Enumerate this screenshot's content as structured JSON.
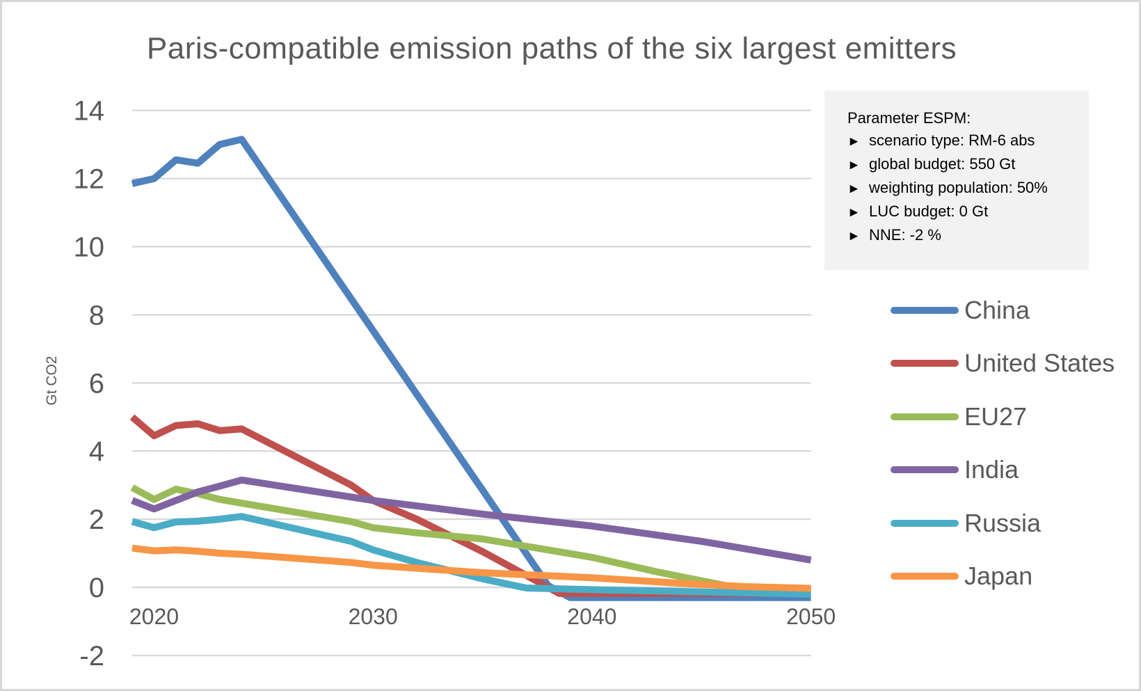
{
  "title": "Paris-compatible emission paths of the six largest emitters",
  "param_box": {
    "title": "Parameter ESPM:",
    "bullet": "►",
    "items": [
      "scenario type: RM-6 abs",
      "global budget: 550 Gt",
      "weighting population: 50%",
      "LUC budget: 0 Gt",
      "NNE: -2 %"
    ]
  },
  "colors": {
    "text": "#595959",
    "grid": "#d9d9d9",
    "param_box_bg": "#f2f2f2",
    "frame_border": "#d6d6d6",
    "background": "#ffffff"
  },
  "chart_data": {
    "type": "line",
    "title": "Paris-compatible emission paths of the six largest emitters",
    "xlabel": "",
    "ylabel": "Gt CO2",
    "xlim": [
      2019,
      2050
    ],
    "ylim": [
      -2,
      14
    ],
    "x_ticks": [
      2020,
      2030,
      2040,
      2050
    ],
    "y_ticks": [
      14,
      12,
      10,
      8,
      6,
      4,
      2,
      0,
      -2
    ],
    "grid": true,
    "legend_position": "right",
    "series": [
      {
        "name": "China",
        "color": "#4F81BD",
        "points": [
          [
            2019,
            11.85
          ],
          [
            2020,
            12.0
          ],
          [
            2021,
            12.55
          ],
          [
            2022,
            12.45
          ],
          [
            2023,
            13.0
          ],
          [
            2024,
            13.15
          ],
          [
            2038,
            0.05
          ],
          [
            2039,
            -0.3
          ],
          [
            2050,
            -0.3
          ]
        ]
      },
      {
        "name": "United States",
        "color": "#C0504D",
        "points": [
          [
            2019,
            5.0
          ],
          [
            2020,
            4.45
          ],
          [
            2021,
            4.75
          ],
          [
            2022,
            4.8
          ],
          [
            2023,
            4.6
          ],
          [
            2024,
            4.65
          ],
          [
            2029,
            3.0
          ],
          [
            2030,
            2.55
          ],
          [
            2032,
            2.0
          ],
          [
            2035,
            1.05
          ],
          [
            2037,
            0.35
          ],
          [
            2038.5,
            -0.18
          ],
          [
            2050,
            -0.18
          ]
        ]
      },
      {
        "name": "EU27",
        "color": "#9BBB59",
        "points": [
          [
            2019,
            2.93
          ],
          [
            2020,
            2.58
          ],
          [
            2021,
            2.88
          ],
          [
            2022,
            2.75
          ],
          [
            2023,
            2.58
          ],
          [
            2024,
            2.47
          ],
          [
            2029,
            1.93
          ],
          [
            2030,
            1.75
          ],
          [
            2032,
            1.6
          ],
          [
            2035,
            1.42
          ],
          [
            2040,
            0.88
          ],
          [
            2043,
            0.45
          ],
          [
            2046.5,
            0.0
          ],
          [
            2048,
            -0.06
          ],
          [
            2050,
            -0.07
          ]
        ]
      },
      {
        "name": "India",
        "color": "#8064A2",
        "points": [
          [
            2019,
            2.55
          ],
          [
            2020,
            2.3
          ],
          [
            2021,
            2.55
          ],
          [
            2022,
            2.8
          ],
          [
            2023,
            2.97
          ],
          [
            2024,
            3.15
          ],
          [
            2030,
            2.55
          ],
          [
            2035,
            2.15
          ],
          [
            2040,
            1.8
          ],
          [
            2045,
            1.35
          ],
          [
            2050,
            0.8
          ]
        ]
      },
      {
        "name": "Russia",
        "color": "#4BACC6",
        "points": [
          [
            2019,
            1.93
          ],
          [
            2020,
            1.75
          ],
          [
            2021,
            1.92
          ],
          [
            2022,
            1.94
          ],
          [
            2023,
            2.0
          ],
          [
            2024,
            2.08
          ],
          [
            2029,
            1.35
          ],
          [
            2030,
            1.1
          ],
          [
            2032,
            0.73
          ],
          [
            2035,
            0.25
          ],
          [
            2037,
            -0.02
          ],
          [
            2040,
            -0.07
          ],
          [
            2050,
            -0.2
          ]
        ]
      },
      {
        "name": "Japan",
        "color": "#F79646",
        "points": [
          [
            2019,
            1.15
          ],
          [
            2020,
            1.07
          ],
          [
            2021,
            1.1
          ],
          [
            2022,
            1.06
          ],
          [
            2023,
            1.0
          ],
          [
            2024,
            0.97
          ],
          [
            2029,
            0.73
          ],
          [
            2030,
            0.65
          ],
          [
            2035,
            0.43
          ],
          [
            2040,
            0.28
          ],
          [
            2044,
            0.12
          ],
          [
            2047,
            0.02
          ],
          [
            2050,
            -0.03
          ]
        ]
      }
    ]
  }
}
